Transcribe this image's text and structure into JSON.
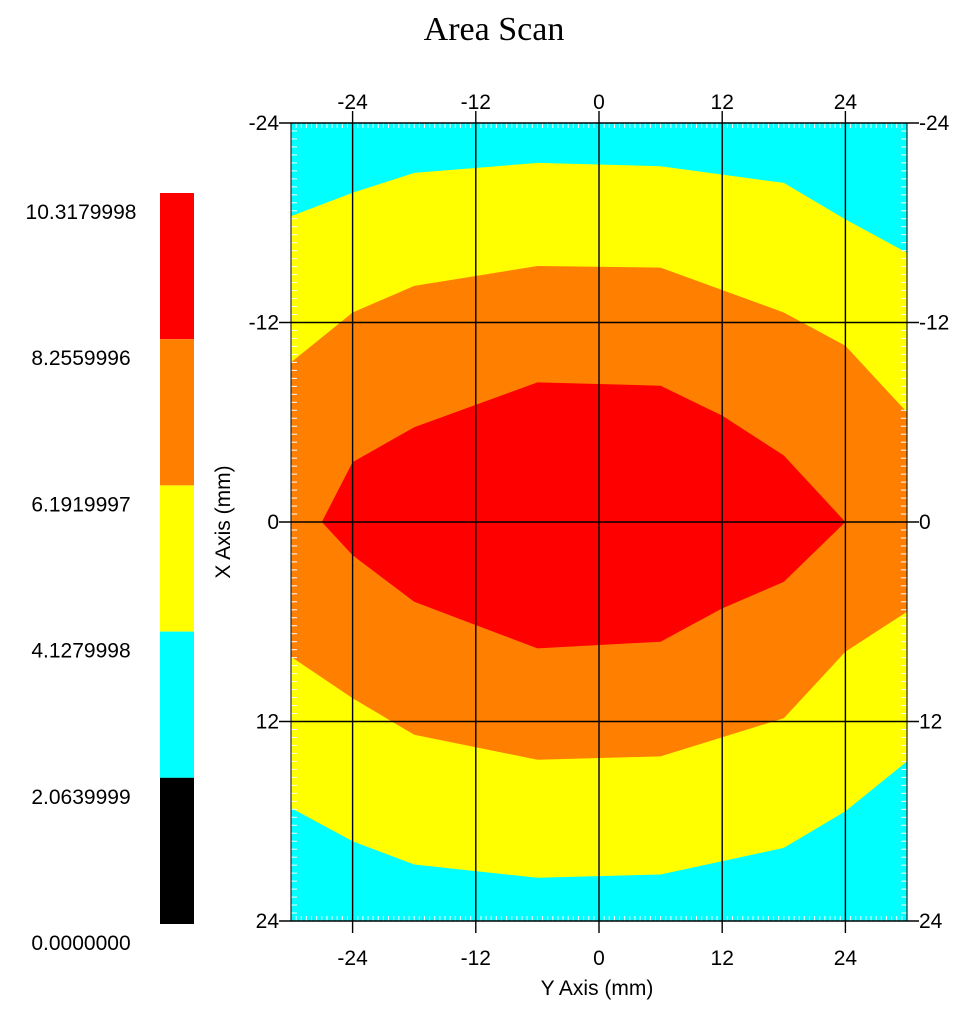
{
  "chart_data": {
    "type": "heatmap",
    "title": "Area Scan",
    "xlabel": "Y Axis (mm)",
    "ylabel": "X Axis (mm)",
    "x_range": [
      -30,
      30
    ],
    "y_range": [
      -24,
      24
    ],
    "y_inverted": true,
    "x_ticks": [
      -24,
      -12,
      0,
      12,
      24
    ],
    "y_ticks": [
      -24,
      -12,
      0,
      12,
      24
    ],
    "grid": true,
    "legend": {
      "placement": "left",
      "levels": [
        "10.3179998",
        "8.2559996",
        "6.1919997",
        "4.1279998",
        "2.0639999",
        "0.0000000"
      ],
      "colors": [
        "#ff0000",
        "#ff8000",
        "#ffff00",
        "#00ffff",
        "#000000"
      ]
    },
    "bands": [
      {
        "level_range": [
          4.1279998,
          6.1919997
        ],
        "color": "#ffff00",
        "boundary": [
          [
            -30,
            -18.4
          ],
          [
            -24,
            -19.8
          ],
          [
            -18,
            -21
          ],
          [
            -6,
            -21.6
          ],
          [
            6,
            -21.4
          ],
          [
            18,
            -20.4
          ],
          [
            24,
            -18.2
          ],
          [
            30,
            -16.2
          ],
          [
            30,
            14.4
          ],
          [
            24,
            17.4
          ],
          [
            18,
            19.6
          ],
          [
            6,
            21.2
          ],
          [
            -6,
            21.4
          ],
          [
            -18,
            20.6
          ],
          [
            -24,
            19.2
          ],
          [
            -30,
            17.2
          ]
        ]
      },
      {
        "level_range": [
          6.1919997,
          8.2559996
        ],
        "color": "#ff8000",
        "boundary": [
          [
            -30,
            -9.6
          ],
          [
            -24,
            -12.6
          ],
          [
            -18,
            -14.2
          ],
          [
            -6,
            -15.4
          ],
          [
            6,
            -15.3
          ],
          [
            18,
            -12.6
          ],
          [
            24,
            -10.6
          ],
          [
            30,
            -6.6
          ],
          [
            30,
            5.4
          ],
          [
            24,
            7.8
          ],
          [
            18,
            11.8
          ],
          [
            6,
            14.1
          ],
          [
            -6,
            14.3
          ],
          [
            -18,
            12.8
          ],
          [
            -24,
            10.6
          ],
          [
            -30,
            8.1
          ]
        ]
      },
      {
        "level_range": [
          8.2559996,
          10.3179998
        ],
        "color": "#ff0000",
        "boundary": [
          [
            -27,
            0
          ],
          [
            -24,
            -3.6
          ],
          [
            -18,
            -5.7
          ],
          [
            -6,
            -8.4
          ],
          [
            6,
            -8.2
          ],
          [
            12,
            -6.4
          ],
          [
            18,
            -4
          ],
          [
            24,
            0
          ],
          [
            18,
            3.6
          ],
          [
            12,
            5.2
          ],
          [
            6,
            7.2
          ],
          [
            -6,
            7.6
          ],
          [
            -18,
            4.8
          ],
          [
            -24,
            2
          ]
        ]
      }
    ]
  }
}
